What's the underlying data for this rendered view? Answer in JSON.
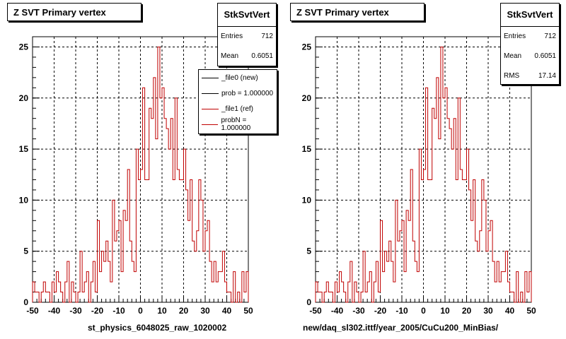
{
  "charts": [
    {
      "title": "Z SVT Primary vertex",
      "stats_name": "StkSvtVert",
      "stats": [
        {
          "label": "Entries",
          "value": "712"
        },
        {
          "label": "Mean",
          "value": "0.6051"
        }
      ],
      "legend": [
        {
          "label": "_file0 (new)",
          "color": "#000000"
        },
        {
          "label": "prob = 1.000000",
          "color": "#000000"
        },
        {
          "label": "_file1 (ref)",
          "color": "#c00000"
        },
        {
          "label": "probN = 1.000000",
          "color": "#c00000"
        }
      ],
      "xlabel": "st_physics_6048025_raw_1020002"
    },
    {
      "title": "Z SVT Primary vertex",
      "stats_name": "StkSvtVert",
      "stats": [
        {
          "label": "Entries",
          "value": "712"
        },
        {
          "label": "Mean",
          "value": "0.6051"
        },
        {
          "label": "RMS",
          "value": "17.14"
        }
      ],
      "xlabel": "new/daq_sl302.ittf/year_2005/CuCu200_MinBias/"
    }
  ],
  "chart_data": {
    "type": "histogram",
    "xlim": [
      -50,
      50
    ],
    "ylim": [
      0,
      26
    ],
    "xticks": [
      -50,
      -40,
      -30,
      -20,
      -10,
      0,
      10,
      20,
      30,
      40,
      50
    ],
    "yticks": [
      0,
      5,
      10,
      15,
      20,
      25
    ],
    "grid": true,
    "bin_width": 1,
    "series": [
      {
        "name": "_file1 (ref)",
        "color": "#c00000",
        "x_start": -50,
        "values": [
          2,
          1,
          1,
          0,
          1,
          2,
          1,
          1,
          0,
          2,
          1,
          3,
          2,
          1,
          0,
          2,
          4,
          0,
          2,
          1,
          0,
          1,
          5,
          1,
          2,
          3,
          0,
          2,
          4,
          1,
          8,
          3,
          5,
          4,
          6,
          4,
          2,
          10,
          6,
          7,
          8,
          3,
          9,
          8,
          13,
          6,
          4,
          3,
          15,
          12,
          13,
          21,
          12,
          12,
          19,
          18,
          22,
          16,
          25,
          20,
          21,
          18,
          17,
          15,
          18,
          12,
          20,
          13,
          12,
          12,
          15,
          11,
          8,
          12,
          6,
          5,
          7,
          12,
          10,
          5,
          7,
          8,
          4,
          2,
          4,
          2,
          3,
          3,
          5,
          2,
          1,
          1,
          0,
          3,
          0,
          1,
          0,
          3,
          1,
          3
        ]
      }
    ]
  }
}
